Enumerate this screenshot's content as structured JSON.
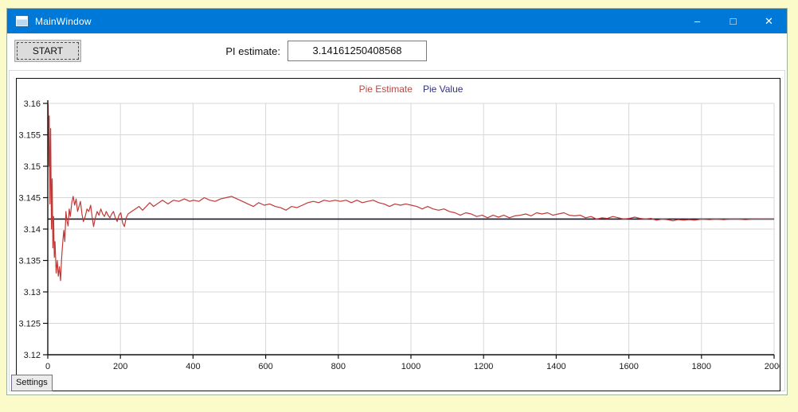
{
  "window": {
    "title": "MainWindow",
    "controls": {
      "minimize": "–",
      "maximize": "□",
      "close": "✕"
    }
  },
  "toolbar": {
    "start_label": "START",
    "pi_label": "PI estimate:",
    "pi_value": "3.14161250408568"
  },
  "tabs": {
    "settings_label": "Settings"
  },
  "chart_data": {
    "type": "line",
    "title": "",
    "xlabel": "",
    "ylabel": "",
    "xlim": [
      0,
      2000
    ],
    "ylim": [
      3.12,
      3.16
    ],
    "grid": true,
    "legend_position": "top-center",
    "x_ticks": [
      0,
      200,
      400,
      600,
      800,
      1000,
      1200,
      1400,
      1600,
      1800,
      2000
    ],
    "y_ticks": [
      "3.16",
      "3.155",
      "3.15",
      "3.145",
      "3.14",
      "3.135",
      "3.13",
      "3.125",
      "3.12"
    ],
    "grid_color": "#d7d7d7",
    "axis_color": "#111111",
    "series": [
      {
        "name": "Pie Value",
        "color": "#18183a",
        "legend_color": "#32327a",
        "constant": 3.14159265
      },
      {
        "name": "Pie Estimate",
        "color": "#bf3a36",
        "legend_color": "#b44b47",
        "points": [
          [
            1,
            3.1599
          ],
          [
            3,
            3.15
          ],
          [
            4,
            3.158
          ],
          [
            6,
            3.144
          ],
          [
            8,
            3.156
          ],
          [
            10,
            3.14
          ],
          [
            12,
            3.148
          ],
          [
            14,
            3.137
          ],
          [
            16,
            3.142
          ],
          [
            18,
            3.1355
          ],
          [
            20,
            3.138
          ],
          [
            23,
            3.133
          ],
          [
            26,
            3.135
          ],
          [
            29,
            3.1325
          ],
          [
            32,
            3.134
          ],
          [
            35,
            3.1318
          ],
          [
            38,
            3.1352
          ],
          [
            41,
            3.1378
          ],
          [
            44,
            3.1398
          ],
          [
            47,
            3.138
          ],
          [
            50,
            3.1428
          ],
          [
            53,
            3.1412
          ],
          [
            56,
            3.1405
          ],
          [
            59,
            3.1432
          ],
          [
            62,
            3.142
          ],
          [
            66,
            3.1442
          ],
          [
            70,
            3.1452
          ],
          [
            74,
            3.1438
          ],
          [
            78,
            3.1448
          ],
          [
            82,
            3.1428
          ],
          [
            86,
            3.1436
          ],
          [
            90,
            3.1444
          ],
          [
            94,
            3.1424
          ],
          [
            98,
            3.1412
          ],
          [
            103,
            3.142
          ],
          [
            108,
            3.1432
          ],
          [
            113,
            3.1428
          ],
          [
            118,
            3.1438
          ],
          [
            122,
            3.142
          ],
          [
            126,
            3.1404
          ],
          [
            131,
            3.1418
          ],
          [
            136,
            3.1428
          ],
          [
            141,
            3.1422
          ],
          [
            146,
            3.1432
          ],
          [
            151,
            3.1424
          ],
          [
            156,
            3.142
          ],
          [
            161,
            3.1428
          ],
          [
            166,
            3.1422
          ],
          [
            171,
            3.1418
          ],
          [
            176,
            3.1424
          ],
          [
            181,
            3.1428
          ],
          [
            186,
            3.1418
          ],
          [
            191,
            3.1412
          ],
          [
            196,
            3.1422
          ],
          [
            201,
            3.1426
          ],
          [
            206,
            3.141
          ],
          [
            211,
            3.1404
          ],
          [
            216,
            3.1418
          ],
          [
            221,
            3.1424
          ],
          [
            231,
            3.1428
          ],
          [
            241,
            3.1432
          ],
          [
            251,
            3.1436
          ],
          [
            261,
            3.143
          ],
          [
            271,
            3.1436
          ],
          [
            281,
            3.1442
          ],
          [
            291,
            3.1436
          ],
          [
            301,
            3.144
          ],
          [
            316,
            3.1446
          ],
          [
            331,
            3.144
          ],
          [
            346,
            3.1446
          ],
          [
            361,
            3.1444
          ],
          [
            376,
            3.1448
          ],
          [
            391,
            3.1444
          ],
          [
            401,
            3.1446
          ],
          [
            416,
            3.1444
          ],
          [
            431,
            3.145
          ],
          [
            446,
            3.1446
          ],
          [
            461,
            3.1444
          ],
          [
            476,
            3.1448
          ],
          [
            491,
            3.145
          ],
          [
            506,
            3.1452
          ],
          [
            521,
            3.1448
          ],
          [
            536,
            3.1444
          ],
          [
            551,
            3.144
          ],
          [
            566,
            3.1436
          ],
          [
            581,
            3.1442
          ],
          [
            596,
            3.1438
          ],
          [
            611,
            3.144
          ],
          [
            626,
            3.1436
          ],
          [
            641,
            3.1434
          ],
          [
            656,
            3.143
          ],
          [
            671,
            3.1436
          ],
          [
            686,
            3.1434
          ],
          [
            701,
            3.1438
          ],
          [
            716,
            3.1442
          ],
          [
            731,
            3.1444
          ],
          [
            746,
            3.1442
          ],
          [
            761,
            3.1446
          ],
          [
            776,
            3.1444
          ],
          [
            791,
            3.1446
          ],
          [
            806,
            3.1444
          ],
          [
            821,
            3.1446
          ],
          [
            836,
            3.1442
          ],
          [
            851,
            3.1446
          ],
          [
            866,
            3.1442
          ],
          [
            881,
            3.1444
          ],
          [
            896,
            3.1446
          ],
          [
            911,
            3.1442
          ],
          [
            926,
            3.144
          ],
          [
            941,
            3.1436
          ],
          [
            956,
            3.144
          ],
          [
            971,
            3.1438
          ],
          [
            986,
            3.144
          ],
          [
            1001,
            3.1438
          ],
          [
            1016,
            3.1436
          ],
          [
            1031,
            3.1432
          ],
          [
            1046,
            3.1436
          ],
          [
            1061,
            3.1432
          ],
          [
            1076,
            3.143
          ],
          [
            1091,
            3.1432
          ],
          [
            1106,
            3.1428
          ],
          [
            1121,
            3.1426
          ],
          [
            1136,
            3.1422
          ],
          [
            1151,
            3.1426
          ],
          [
            1166,
            3.1424
          ],
          [
            1181,
            3.142
          ],
          [
            1196,
            3.1422
          ],
          [
            1211,
            3.1418
          ],
          [
            1226,
            3.1422
          ],
          [
            1241,
            3.1419
          ],
          [
            1256,
            3.1422
          ],
          [
            1271,
            3.1418
          ],
          [
            1286,
            3.1421
          ],
          [
            1301,
            3.1422
          ],
          [
            1316,
            3.1424
          ],
          [
            1331,
            3.1421
          ],
          [
            1346,
            3.1426
          ],
          [
            1361,
            3.1424
          ],
          [
            1376,
            3.1426
          ],
          [
            1391,
            3.1422
          ],
          [
            1406,
            3.1424
          ],
          [
            1421,
            3.1426
          ],
          [
            1436,
            3.1422
          ],
          [
            1451,
            3.1421
          ],
          [
            1466,
            3.1422
          ],
          [
            1481,
            3.1418
          ],
          [
            1496,
            3.142
          ],
          [
            1511,
            3.1416
          ],
          [
            1526,
            3.1418
          ],
          [
            1541,
            3.1417
          ],
          [
            1556,
            3.142
          ],
          [
            1571,
            3.1418
          ],
          [
            1586,
            3.1416
          ],
          [
            1601,
            3.1417
          ],
          [
            1616,
            3.1419
          ],
          [
            1631,
            3.1417
          ],
          [
            1646,
            3.1416
          ],
          [
            1661,
            3.1417
          ],
          [
            1676,
            3.1414
          ],
          [
            1691,
            3.1416
          ],
          [
            1706,
            3.1415
          ],
          [
            1721,
            3.1413
          ],
          [
            1736,
            3.1415
          ],
          [
            1751,
            3.1414
          ],
          [
            1766,
            3.1415
          ],
          [
            1781,
            3.1414
          ],
          [
            1801,
            3.1416
          ],
          [
            1821,
            3.1415
          ],
          [
            1841,
            3.1416
          ],
          [
            1861,
            3.1415
          ],
          [
            1881,
            3.1416
          ],
          [
            1901,
            3.1416
          ],
          [
            1921,
            3.1415
          ],
          [
            1941,
            3.1416
          ],
          [
            1961,
            3.1416
          ],
          [
            1981,
            3.1416
          ],
          [
            2000,
            3.1416
          ]
        ]
      }
    ]
  }
}
